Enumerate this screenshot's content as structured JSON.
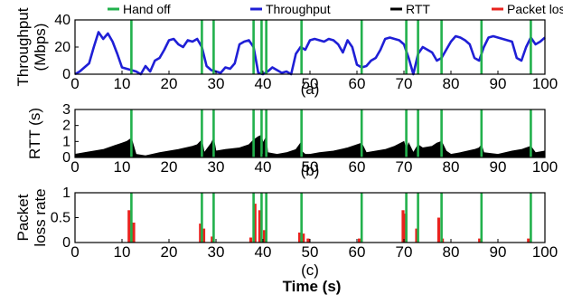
{
  "legend": [
    {
      "label": "Hand off",
      "color": "#22b14c"
    },
    {
      "label": "Throughput",
      "color": "#1f1fd6"
    },
    {
      "label": "RTT",
      "color": "#000000"
    },
    {
      "label": "Packet loss rate",
      "color": "#e8231e"
    }
  ],
  "xlabel": "Time (s)",
  "chart_data": [
    {
      "panel": "(a)",
      "type": "line",
      "ylabel_lines": [
        "Throughput",
        "(Mbps)"
      ],
      "xlim": [
        0,
        100
      ],
      "ylim": [
        0,
        40
      ],
      "x_ticks": [
        0,
        10,
        20,
        30,
        40,
        50,
        60,
        70,
        80,
        90,
        100
      ],
      "y_ticks": [
        0,
        20,
        40
      ],
      "handoffs": [
        12,
        27,
        29.5,
        38,
        39.7,
        40.7,
        48.2,
        61,
        70.5,
        73,
        78,
        86.5,
        97
      ],
      "series": [
        {
          "name": "Throughput",
          "x": [
            0,
            1,
            2,
            3,
            4,
            5,
            6,
            7,
            8,
            9,
            10,
            11,
            12,
            13,
            14,
            15,
            16,
            17,
            18,
            19,
            20,
            21,
            22,
            23,
            24,
            25,
            26,
            27,
            28,
            29,
            30,
            31,
            32,
            33,
            34,
            35,
            36,
            37,
            38,
            39,
            40,
            41,
            42,
            43,
            44,
            45,
            46,
            47,
            48,
            49,
            50,
            51,
            52,
            53,
            54,
            55,
            56,
            57,
            58,
            59,
            60,
            61,
            62,
            63,
            64,
            65,
            66,
            67,
            68,
            69,
            70,
            71,
            72,
            73,
            74,
            75,
            76,
            77,
            78,
            79,
            80,
            81,
            82,
            83,
            84,
            85,
            86,
            87,
            88,
            89,
            90,
            91,
            92,
            93,
            94,
            95,
            96,
            97,
            98,
            99,
            100
          ],
          "y": [
            0,
            2,
            5,
            8,
            20,
            31,
            26,
            30,
            24,
            15,
            5,
            4,
            3,
            2,
            0,
            6,
            2,
            10,
            12,
            18,
            25,
            26,
            22,
            20,
            25,
            24,
            26,
            20,
            6,
            3,
            2,
            1,
            5,
            4,
            8,
            22,
            24,
            25,
            20,
            1,
            0,
            2,
            5,
            3,
            1,
            2,
            0,
            15,
            20,
            18,
            25,
            26,
            25,
            24,
            26,
            25,
            22,
            16,
            25,
            20,
            7,
            5,
            6,
            10,
            12,
            18,
            26,
            27,
            26,
            25,
            22,
            12,
            0,
            15,
            20,
            18,
            16,
            10,
            12,
            18,
            24,
            28,
            27,
            25,
            22,
            12,
            10,
            20,
            27,
            28,
            27,
            26,
            25,
            24,
            12,
            10,
            20,
            27,
            22,
            24,
            27
          ]
        }
      ]
    },
    {
      "panel": "(b)",
      "type": "area",
      "ylabel_lines": [
        "RTT (s)"
      ],
      "xlim": [
        0,
        100
      ],
      "ylim": [
        0,
        3
      ],
      "x_ticks": [
        0,
        10,
        20,
        30,
        40,
        50,
        60,
        70,
        80,
        90,
        100
      ],
      "y_ticks": [
        0,
        1,
        2,
        3
      ],
      "handoffs": [
        12,
        27,
        29.5,
        38,
        39.7,
        40.7,
        48.2,
        61,
        70.5,
        73,
        78,
        86.5,
        97
      ],
      "series": [
        {
          "name": "RTT",
          "x": [
            0,
            2,
            4,
            6,
            8,
            10,
            11,
            12,
            13,
            15,
            18,
            20,
            22,
            25,
            26,
            27,
            27.5,
            29,
            29.5,
            30,
            32,
            35,
            37,
            38,
            39,
            39.7,
            40,
            40.7,
            41,
            43,
            45,
            47,
            48,
            48.2,
            49,
            50,
            52,
            55,
            58,
            60,
            61,
            62,
            64,
            66,
            68,
            70,
            70.5,
            71,
            72,
            73,
            74,
            76,
            77,
            78,
            79,
            80,
            82,
            85,
            86,
            86.5,
            87,
            90,
            93,
            95,
            96,
            97,
            98,
            100
          ],
          "y": [
            0.2,
            0.3,
            0.4,
            0.5,
            0.7,
            0.9,
            1.0,
            1.2,
            0.2,
            0.1,
            0.3,
            0.4,
            0.5,
            0.7,
            0.8,
            1.1,
            0.3,
            0.9,
            1.2,
            0.4,
            0.5,
            0.6,
            0.8,
            1.1,
            1.3,
            1.4,
            0.9,
            1.3,
            0.3,
            0.2,
            0.3,
            0.5,
            0.9,
            0.4,
            0.2,
            0.2,
            0.3,
            0.4,
            0.6,
            0.8,
            0.9,
            0.3,
            0.4,
            0.5,
            0.7,
            1.0,
            0.4,
            0.9,
            0.3,
            0.8,
            0.6,
            0.7,
            0.9,
            1.0,
            0.4,
            0.2,
            0.3,
            0.5,
            0.6,
            0.8,
            0.3,
            0.2,
            0.4,
            0.5,
            0.6,
            0.7,
            0.3,
            0.4
          ]
        }
      ]
    },
    {
      "panel": "(c)",
      "type": "bar",
      "ylabel_lines": [
        "Packet",
        "loss rate"
      ],
      "xlim": [
        0,
        100
      ],
      "ylim": [
        0,
        1
      ],
      "x_ticks": [
        0,
        10,
        20,
        30,
        40,
        50,
        60,
        70,
        80,
        90,
        100
      ],
      "y_ticks": [
        0,
        0.5,
        1
      ],
      "handoffs": [
        12,
        27,
        29.5,
        38,
        39.7,
        40.7,
        48.2,
        61,
        70.5,
        73,
        78,
        86.5,
        97
      ],
      "series": [
        {
          "name": "Packet loss rate",
          "x": [
            11.5,
            12.5,
            26.7,
            27.4,
            29.2,
            37.4,
            38.3,
            39.3,
            40.3,
            47.8,
            48.6,
            49.6,
            60.5,
            69.8,
            70.4,
            72.7,
            77.4,
            78.2,
            86.1,
            96.5
          ],
          "y": [
            0.65,
            0.4,
            0.38,
            0.28,
            0.12,
            0.1,
            0.78,
            0.65,
            0.25,
            0.2,
            0.18,
            0.08,
            0.08,
            0.65,
            0.58,
            0.28,
            0.5,
            0.08,
            0.08,
            0.08
          ]
        }
      ]
    }
  ]
}
